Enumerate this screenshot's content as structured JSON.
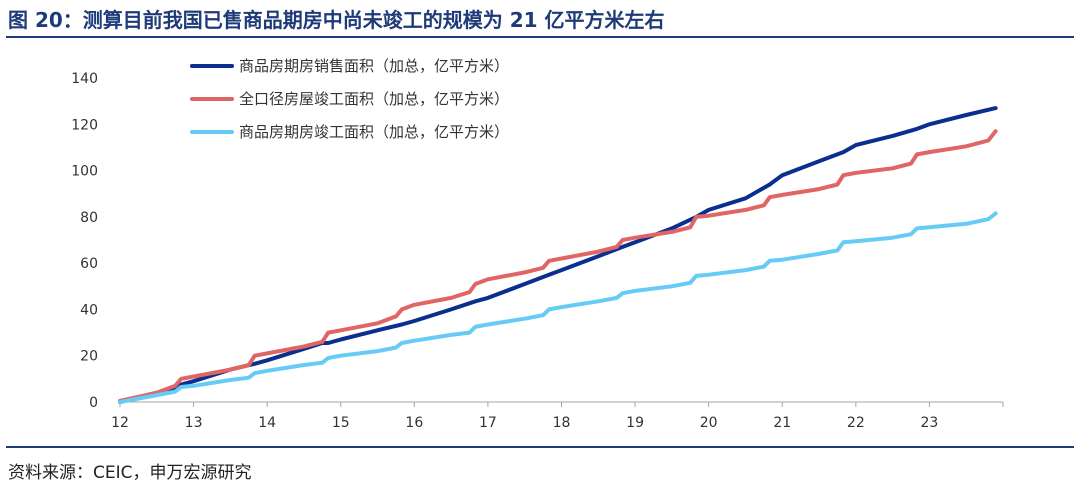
{
  "figure": {
    "title": "图 20：测算目前我国已售商品期房中尚未竣工的规模为 21 亿平方米左右",
    "source": "资料来源：CEIC，申万宏源研究"
  },
  "chart_data": {
    "type": "line",
    "x_ticks": [
      "12",
      "13",
      "14",
      "15",
      "16",
      "17",
      "18",
      "19",
      "20",
      "21",
      "22",
      "23"
    ],
    "xlim": [
      12,
      24
    ],
    "ylim": [
      0,
      140
    ],
    "y_ticks": [
      0,
      20,
      40,
      60,
      80,
      100,
      120,
      140
    ],
    "grid": false,
    "legend_position": "top-left",
    "series": [
      {
        "name": "商品房期房销售面积（加总，亿平方米）",
        "color": "#0a2f8e",
        "x": [
          12.0,
          12.5,
          12.75,
          12.83,
          13.0,
          13.5,
          13.83,
          14.0,
          14.5,
          14.75,
          14.83,
          15.0,
          15.5,
          15.83,
          16.0,
          16.5,
          16.83,
          17.0,
          17.5,
          17.83,
          18.0,
          18.5,
          18.83,
          19.0,
          19.5,
          19.83,
          20.0,
          20.5,
          20.83,
          21.0,
          21.5,
          21.83,
          22.0,
          22.5,
          22.83,
          23.0,
          23.5,
          23.9
        ],
        "values": [
          0,
          4,
          6,
          7.5,
          9,
          14,
          16.5,
          18,
          23,
          25.5,
          25.5,
          27,
          31,
          33.5,
          35,
          40,
          43.5,
          45,
          51,
          55,
          57,
          63,
          67,
          69,
          75,
          80,
          83,
          88,
          94,
          98,
          104,
          108,
          111,
          115,
          118,
          120,
          124,
          127
        ]
      },
      {
        "name": "全口径房屋竣工面积（加总，亿平方米）",
        "color": "#e06666",
        "x": [
          12.0,
          12.5,
          12.75,
          12.83,
          13.0,
          13.5,
          13.75,
          13.83,
          14.0,
          14.5,
          14.75,
          14.83,
          15.0,
          15.5,
          15.75,
          15.83,
          16.0,
          16.5,
          16.75,
          16.83,
          17.0,
          17.5,
          17.75,
          17.83,
          18.0,
          18.5,
          18.75,
          18.83,
          19.0,
          19.5,
          19.75,
          19.83,
          20.0,
          20.5,
          20.75,
          20.83,
          21.0,
          21.5,
          21.75,
          21.83,
          22.0,
          22.5,
          22.75,
          22.83,
          23.0,
          23.5,
          23.8,
          23.9
        ],
        "values": [
          0.5,
          4,
          7,
          10,
          11,
          14,
          16,
          20,
          21,
          24,
          26,
          30,
          31,
          34,
          37,
          40,
          42,
          45,
          47.5,
          51,
          53,
          56,
          58,
          61,
          62,
          65,
          67,
          70,
          71,
          73.5,
          75.5,
          80,
          80.5,
          83,
          85,
          88.5,
          89.5,
          92,
          94,
          98,
          99,
          101,
          103,
          107,
          108,
          110.5,
          113,
          117
        ]
      },
      {
        "name": "商品房期房竣工面积（加总，亿平方米）",
        "color": "#66ccf5",
        "x": [
          12.0,
          12.5,
          12.75,
          12.83,
          13.0,
          13.5,
          13.75,
          13.83,
          14.0,
          14.5,
          14.75,
          14.83,
          15.0,
          15.5,
          15.75,
          15.83,
          16.0,
          16.5,
          16.75,
          16.83,
          17.0,
          17.5,
          17.75,
          17.83,
          18.0,
          18.5,
          18.75,
          18.83,
          19.0,
          19.5,
          19.75,
          19.83,
          20.0,
          20.5,
          20.75,
          20.83,
          21.0,
          21.5,
          21.75,
          21.83,
          22.0,
          22.5,
          22.75,
          22.83,
          23.0,
          23.5,
          23.8,
          23.9
        ],
        "values": [
          0,
          3,
          4.5,
          6.5,
          7,
          9.5,
          10.5,
          12.5,
          13.5,
          16,
          17,
          19,
          20,
          22,
          23.5,
          25.5,
          26.5,
          29,
          30,
          32.5,
          33.5,
          36,
          37.5,
          40,
          41,
          43.5,
          45,
          47,
          48,
          50,
          51.5,
          54.5,
          55,
          57,
          58.5,
          61,
          61.5,
          64,
          65.5,
          69,
          69.5,
          71,
          72.5,
          75,
          75.5,
          77,
          79,
          81.5
        ]
      }
    ]
  }
}
